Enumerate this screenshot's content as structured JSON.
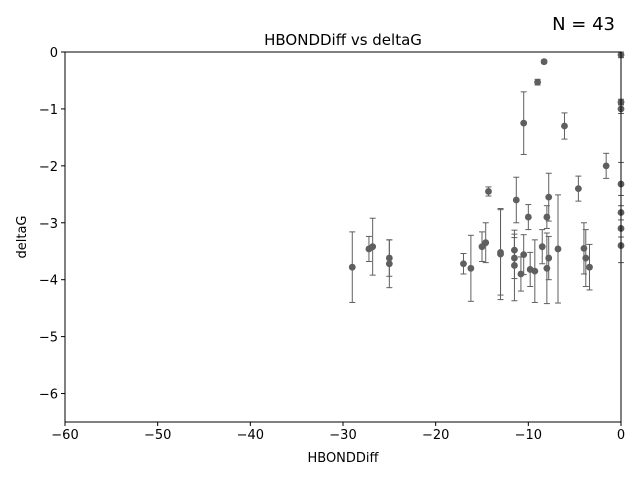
{
  "chart_data": {
    "type": "scatter",
    "title": "HBONDDiff vs deltaG",
    "xlabel": "HBONDDiff",
    "ylabel": "deltaG",
    "annotation": "N = 43",
    "xlim": [
      -60,
      0
    ],
    "ylim": [
      -6.5,
      0
    ],
    "xticks": [
      -60,
      -50,
      -40,
      -30,
      -20,
      -10,
      0
    ],
    "yticks": [
      0,
      -1,
      -2,
      -3,
      -4,
      -5,
      -6
    ],
    "xtick_labels": [
      "−60",
      "−50",
      "−40",
      "−30",
      "−20",
      "−10",
      "0"
    ],
    "ytick_labels": [
      "0",
      "−1",
      "−2",
      "−3",
      "−4",
      "−5",
      "−6"
    ],
    "grid": false,
    "marker_color": "#5f5f5f",
    "errorbar_color": "#5f5f5f",
    "points": [
      {
        "x": -29,
        "y": -3.78,
        "err": 0.62
      },
      {
        "x": -27.2,
        "y": -3.46,
        "err": 0.22
      },
      {
        "x": -26.8,
        "y": -3.42,
        "err": 0.5
      },
      {
        "x": -25,
        "y": -3.62,
        "err": 0.32
      },
      {
        "x": -25,
        "y": -3.72,
        "err": 0.42
      },
      {
        "x": -17,
        "y": -3.72,
        "err": 0.18
      },
      {
        "x": -16.2,
        "y": -3.8,
        "err": 0.58
      },
      {
        "x": -15,
        "y": -3.42,
        "err": 0.26
      },
      {
        "x": -14.6,
        "y": -3.35,
        "err": 0.35
      },
      {
        "x": -14.3,
        "y": -2.45,
        "err": 0.08
      },
      {
        "x": -13,
        "y": -3.55,
        "err": 0.8
      },
      {
        "x": -13,
        "y": -3.52,
        "err": 0.75
      },
      {
        "x": -11.5,
        "y": -3.48,
        "err": 0.28
      },
      {
        "x": -11.5,
        "y": -3.62,
        "err": 0.36
      },
      {
        "x": -11.5,
        "y": -3.75,
        "err": 0.62
      },
      {
        "x": -11.3,
        "y": -2.6,
        "err": 0.4
      },
      {
        "x": -10.8,
        "y": -3.9,
        "err": 0.3
      },
      {
        "x": -10.5,
        "y": -1.25,
        "err": 0.55
      },
      {
        "x": -10.5,
        "y": -3.56,
        "err": 0.35
      },
      {
        "x": -10,
        "y": -2.9,
        "err": 0.22
      },
      {
        "x": -9.8,
        "y": -3.82,
        "err": 0.3
      },
      {
        "x": -9.3,
        "y": -3.85,
        "err": 0.55
      },
      {
        "x": -9,
        "y": -0.53,
        "err": 0.05
      },
      {
        "x": -8.5,
        "y": -3.42,
        "err": 0.3
      },
      {
        "x": -8.3,
        "y": -0.17,
        "err": 0.03
      },
      {
        "x": -8,
        "y": -2.9,
        "err": 0.2
      },
      {
        "x": -8,
        "y": -3.8,
        "err": 0.62
      },
      {
        "x": -7.8,
        "y": -2.55,
        "err": 0.42
      },
      {
        "x": -7.8,
        "y": -3.62,
        "err": 0.38
      },
      {
        "x": -6.8,
        "y": -3.46,
        "err": 0.95
      },
      {
        "x": -6.1,
        "y": -1.3,
        "err": 0.23
      },
      {
        "x": -4.6,
        "y": -2.4,
        "err": 0.22
      },
      {
        "x": -4,
        "y": -3.45,
        "err": 0.45
      },
      {
        "x": -3.8,
        "y": -3.62,
        "err": 0.5
      },
      {
        "x": -3.4,
        "y": -3.78,
        "err": 0.4
      },
      {
        "x": -1.6,
        "y": -2.0,
        "err": 0.22
      },
      {
        "x": 0,
        "y": -0.05,
        "err": 0.05
      },
      {
        "x": 0,
        "y": -0.88,
        "err": 0.05
      },
      {
        "x": 0,
        "y": -1.0,
        "err": 0.08
      },
      {
        "x": 0,
        "y": -2.32,
        "err": 0.38
      },
      {
        "x": 0,
        "y": -2.82,
        "err": 0.3
      },
      {
        "x": 0,
        "y": -3.1,
        "err": 0.15
      },
      {
        "x": 0,
        "y": -3.4,
        "err": 0.3
      }
    ]
  }
}
